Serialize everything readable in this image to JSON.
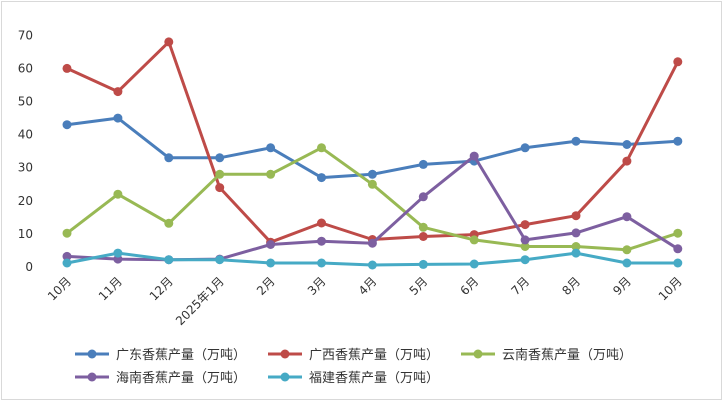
{
  "chart_data": {
    "type": "line",
    "categories": [
      "10月",
      "11月",
      "12月",
      "2025年1月",
      "2月",
      "3月",
      "4月",
      "5月",
      "6月",
      "7月",
      "8月",
      "9月",
      "10月"
    ],
    "ylim": [
      0,
      70
    ],
    "yticks": [
      0,
      10,
      20,
      30,
      40,
      50,
      60,
      70
    ],
    "grid": false,
    "legend_position": "bottom",
    "series": [
      {
        "name": "广东香蕉产量（万吨）",
        "color": "#4a7ebb",
        "values": [
          43,
          45,
          33,
          33,
          36,
          27,
          28,
          31,
          32,
          36,
          38,
          37,
          38
        ]
      },
      {
        "name": "广西香蕉产量（万吨）",
        "color": "#be4b48",
        "values": [
          60,
          53,
          68,
          24,
          7.5,
          13.3,
          8.3,
          9.2,
          9.8,
          12.8,
          15.5,
          32,
          62
        ]
      },
      {
        "name": "云南香蕉产量（万吨）",
        "color": "#98b954",
        "values": [
          10.2,
          22,
          13.2,
          28,
          28,
          36,
          25,
          12,
          8.2,
          6.2,
          6.2,
          5.2,
          10.2
        ]
      },
      {
        "name": "海南香蕉产量（万吨）",
        "color": "#7d5fa0",
        "values": [
          3.2,
          2.4,
          2.2,
          2.4,
          6.8,
          7.8,
          7.2,
          21.2,
          33.5,
          8.2,
          10.3,
          15.2,
          5.5
        ]
      },
      {
        "name": "福建香蕉产量（万吨）",
        "color": "#46aac5",
        "values": [
          1.2,
          4.2,
          2.2,
          2.2,
          1.2,
          1.2,
          0.6,
          0.8,
          0.9,
          2.2,
          4.2,
          1.2,
          1.2
        ]
      }
    ]
  }
}
